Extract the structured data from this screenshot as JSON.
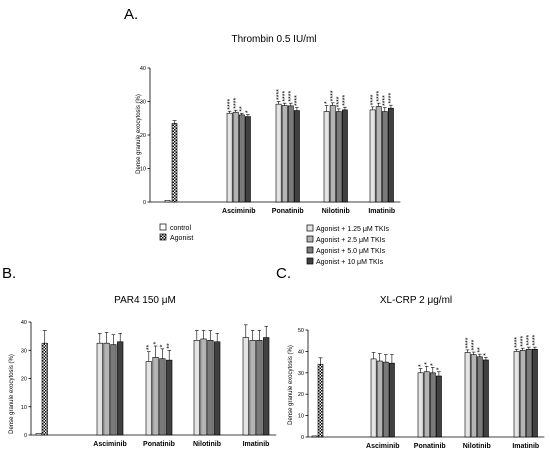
{
  "colors": {
    "control": "#ffffff",
    "agonist": "#ffffff",
    "tki_1_25": "#e4e4e4",
    "tki_2_5": "#b4b4b4",
    "tki_5_0": "#7a7a7a",
    "tki_10": "#404040"
  },
  "legend": {
    "control": "control",
    "agonist": "Agonist",
    "tki": [
      "Agonist + 1.25 μM TKIs",
      "Agonist + 2.5 μM TKIs",
      "Agonist + 5.0 μM TKIs",
      "Agonist + 10  μM TKIs"
    ]
  },
  "chart_data": [
    {
      "type": "bar",
      "panel": "A.",
      "title": "Thrombin 0.5 IU/ml",
      "ylabel": "Dense granule exocytosis (%)",
      "ylim": [
        0,
        40
      ],
      "yticks": [
        "0",
        "10",
        "20",
        "30",
        "40"
      ],
      "control": 0.5,
      "agonist": {
        "value": 23.5,
        "err": 0.8
      },
      "categories": [
        "Asciminib",
        "Ponatinib",
        "Nilotinib",
        "Imatinib"
      ],
      "series": [
        {
          "name": "Agonist + 1.25 μM TKIs",
          "values": [
            26.5,
            29.2,
            27,
            27.5
          ],
          "err": [
            0.6,
            0.8,
            1.8,
            0.9
          ],
          "sig": [
            "****",
            "****",
            "*",
            "****"
          ]
        },
        {
          "name": "Agonist + 2.5 μM TKIs",
          "values": [
            26.8,
            28.8,
            28.8,
            28.5
          ],
          "err": [
            0.6,
            0.7,
            0.8,
            1.0
          ],
          "sig": [
            "****",
            "****",
            "****",
            "****"
          ]
        },
        {
          "name": "Agonist + 5.0 μM TKIs",
          "values": [
            26,
            28.7,
            27,
            27
          ],
          "err": [
            0.5,
            0.8,
            0.8,
            1.2
          ],
          "sig": [
            "**",
            "****",
            "****",
            "****"
          ]
        },
        {
          "name": "Agonist + 10  μM TKIs",
          "values": [
            25.5,
            27.3,
            27.5,
            28
          ],
          "err": [
            0.6,
            0.9,
            0.8,
            0.9
          ],
          "sig": [
            "*",
            "****",
            "****",
            "****"
          ]
        }
      ]
    },
    {
      "type": "bar",
      "panel": "B.",
      "title": "PAR4 150 μM",
      "ylabel": "Dense granule exocytosis (%)",
      "ylim": [
        0,
        40
      ],
      "yticks": [
        "0",
        "10",
        "20",
        "30",
        "40"
      ],
      "control": 0.5,
      "agonist": {
        "value": 32.5,
        "err": 4.5
      },
      "categories": [
        "Asciminib",
        "Ponatinib",
        "Nilotinib",
        "Imatinib"
      ],
      "series": [
        {
          "name": "Agonist + 1.25 μM TKIs",
          "values": [
            32.5,
            26,
            33.5,
            34.5
          ],
          "err": [
            3.5,
            3.5,
            3.5,
            4.5
          ],
          "sig": [
            "",
            "**",
            "",
            ""
          ]
        },
        {
          "name": "Agonist + 2.5 μM TKIs",
          "values": [
            32.5,
            27.5,
            34,
            33.5
          ],
          "err": [
            3.8,
            4.0,
            3.0,
            3.5
          ],
          "sig": [
            "",
            "*",
            "",
            ""
          ]
        },
        {
          "name": "Agonist + 5.0 μM TKIs",
          "values": [
            32,
            27,
            33.5,
            33.5
          ],
          "err": [
            3.5,
            3.5,
            3.5,
            3.5
          ],
          "sig": [
            "",
            "*",
            "",
            ""
          ]
        },
        {
          "name": "Agonist + 10  μM TKIs",
          "values": [
            33,
            26.5,
            33,
            34.5
          ],
          "err": [
            3.0,
            3.5,
            3.0,
            4.0
          ],
          "sig": [
            "",
            "**",
            "",
            ""
          ]
        }
      ]
    },
    {
      "type": "bar",
      "panel": "C.",
      "title": "XL-CRP 2 μg/ml",
      "ylabel": "Dense granule exocytosis (%)",
      "ylim": [
        0,
        50
      ],
      "yticks": [
        "0",
        "10",
        "20",
        "30",
        "40",
        "50"
      ],
      "control": 0.5,
      "agonist": {
        "value": 34,
        "err": 3.0
      },
      "categories": [
        "Asciminib",
        "Ponatinib",
        "Nilotinib",
        "Imatinib"
      ],
      "series": [
        {
          "name": "Agonist + 1.25 μM TKIs",
          "values": [
            36.5,
            30,
            39.5,
            40
          ],
          "err": [
            3.0,
            2.0,
            1.2,
            1.0
          ],
          "sig": [
            "",
            "*",
            "****",
            "****"
          ]
        },
        {
          "name": "Agonist + 2.5 μM TKIs",
          "values": [
            35.5,
            30.5,
            38.5,
            40.5
          ],
          "err": [
            3.5,
            2.5,
            1.2,
            1.0
          ],
          "sig": [
            "",
            "*",
            "****",
            "****"
          ]
        },
        {
          "name": "Agonist + 5.0 μM TKIs",
          "values": [
            35,
            30,
            37.5,
            41
          ],
          "err": [
            3.5,
            2.5,
            1.2,
            1.0
          ],
          "sig": [
            "",
            "*",
            "**",
            "****"
          ]
        },
        {
          "name": "Agonist + 10  μM TKIs",
          "values": [
            34.5,
            28.5,
            36,
            41
          ],
          "err": [
            4.0,
            2.0,
            1.2,
            1.0
          ],
          "sig": [
            "",
            "*",
            "*",
            "****"
          ]
        }
      ]
    }
  ]
}
